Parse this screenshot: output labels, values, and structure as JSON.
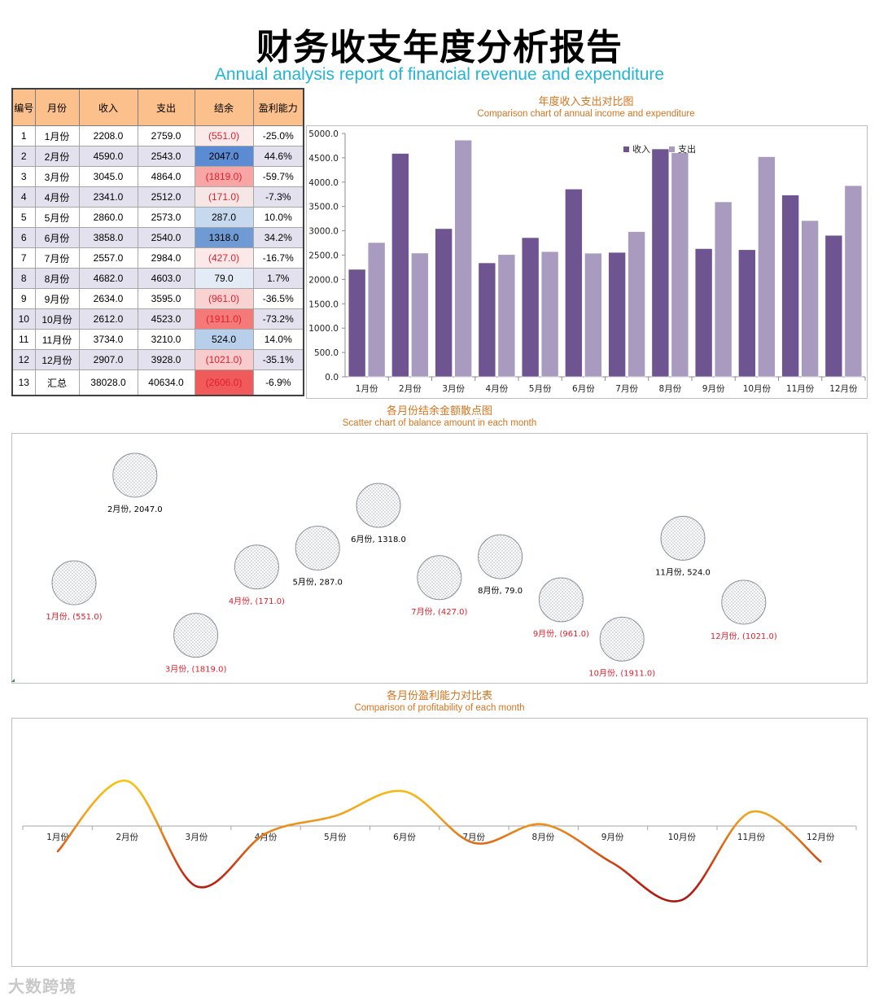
{
  "title": "财务收支年度分析报告",
  "subtitle": "Annual analysis report of financial revenue and expenditure",
  "table": {
    "headers": [
      "编号",
      "月份",
      "收入",
      "支出",
      "结余",
      "盈利能力"
    ],
    "rows": [
      [
        "1",
        "1月份",
        "2208.0",
        "2759.0",
        "(551.0)",
        "-25.0%"
      ],
      [
        "2",
        "2月份",
        "4590.0",
        "2543.0",
        "2047.0",
        "44.6%"
      ],
      [
        "3",
        "3月份",
        "3045.0",
        "4864.0",
        "(1819.0)",
        "-59.7%"
      ],
      [
        "4",
        "4月份",
        "2341.0",
        "2512.0",
        "(171.0)",
        "-7.3%"
      ],
      [
        "5",
        "5月份",
        "2860.0",
        "2573.0",
        "287.0",
        "10.0%"
      ],
      [
        "6",
        "6月份",
        "3858.0",
        "2540.0",
        "1318.0",
        "34.2%"
      ],
      [
        "7",
        "7月份",
        "2557.0",
        "2984.0",
        "(427.0)",
        "-16.7%"
      ],
      [
        "8",
        "8月份",
        "4682.0",
        "4603.0",
        "79.0",
        "1.7%"
      ],
      [
        "9",
        "9月份",
        "2634.0",
        "3595.0",
        "(961.0)",
        "-36.5%"
      ],
      [
        "10",
        "10月份",
        "2612.0",
        "4523.0",
        "(1911.0)",
        "-73.2%"
      ],
      [
        "11",
        "11月份",
        "3734.0",
        "3210.0",
        "524.0",
        "14.0%"
      ],
      [
        "12",
        "12月份",
        "2907.0",
        "3928.0",
        "(1021.0)",
        "-35.1%"
      ],
      [
        "13",
        "汇总",
        "38028.0",
        "40634.0",
        "(2606.0)",
        "-6.9%"
      ]
    ],
    "balance_cell_colors": [
      "#fbeaea",
      "#5b8bd2",
      "#f7a5a5",
      "#f7e6e6",
      "#c6d9ee",
      "#6f9ad4",
      "#fbe9e9",
      "#e3ebf6",
      "#f9d2d2",
      "#f47a7a",
      "#b7cfea",
      "#f8cccc",
      "#f05a5a"
    ]
  },
  "chart_data": [
    {
      "type": "bar",
      "title": "年度收入支出对比图",
      "subtitle": "Comparison chart of annual income and expenditure",
      "categories": [
        "1月份",
        "2月份",
        "3月份",
        "4月份",
        "5月份",
        "6月份",
        "7月份",
        "8月份",
        "9月份",
        "10月份",
        "11月份",
        "12月份"
      ],
      "series": [
        {
          "name": "收入",
          "color": "#6e5591",
          "values": [
            2208,
            4590,
            3045,
            2341,
            2860,
            3858,
            2557,
            4682,
            2634,
            2612,
            3734,
            2907
          ]
        },
        {
          "name": "支出",
          "color": "#a89bbf",
          "values": [
            2759,
            2543,
            4864,
            2512,
            2573,
            2540,
            2984,
            4603,
            3595,
            4523,
            3210,
            3928
          ]
        }
      ],
      "ylim": [
        0,
        5000
      ],
      "yticks": [
        "0.0",
        "500.0",
        "1000.0",
        "1500.0",
        "2000.0",
        "2500.0",
        "3000.0",
        "3500.0",
        "4000.0",
        "4500.0",
        "5000.0"
      ],
      "legend": "top-right",
      "grid": false
    },
    {
      "type": "scatter",
      "title": "各月份结余金额散点图",
      "subtitle": "Scatter chart of balance amount in each month",
      "x": [
        1,
        2,
        3,
        4,
        5,
        6,
        7,
        8,
        9,
        10,
        11,
        12
      ],
      "values": [
        -551,
        2047,
        -1819,
        -171,
        287,
        1318,
        -427,
        79,
        -961,
        -1911,
        524,
        -1021
      ],
      "point_labels": [
        "1月份, (551.0)",
        "2月份, 2047.0",
        "3月份, (1819.0)",
        "4月份, (171.0)",
        "5月份, 287.0",
        "6月份, 1318.0",
        "7月份, (427.0)",
        "8月份, 79.0",
        "9月份, (961.0)",
        "10月份, (1911.0)",
        "11月份, 524.0",
        "12月份, (1021.0)"
      ],
      "ylim": [
        -2200,
        2400
      ],
      "positive_label_color": "#000000",
      "negative_label_color": "#e0202e"
    },
    {
      "type": "line",
      "title": "各月份盈利能力对比表",
      "subtitle": "Comparison of profitability of each month",
      "categories": [
        "1月份",
        "2月份",
        "3月份",
        "4月份",
        "5月份",
        "6月份",
        "7月份",
        "8月份",
        "9月份",
        "10月份",
        "11月份",
        "12月份"
      ],
      "values": [
        -25.0,
        44.6,
        -59.7,
        -7.3,
        10.0,
        34.2,
        -16.7,
        1.7,
        -36.5,
        -73.2,
        14.0,
        -35.1
      ],
      "ylim": [
        -78,
        48
      ],
      "smooth": true,
      "gradient": [
        "#ffe000",
        "#f0a020",
        "#c02010",
        "#7a0a08"
      ]
    }
  ],
  "watermark": "大数跨境"
}
